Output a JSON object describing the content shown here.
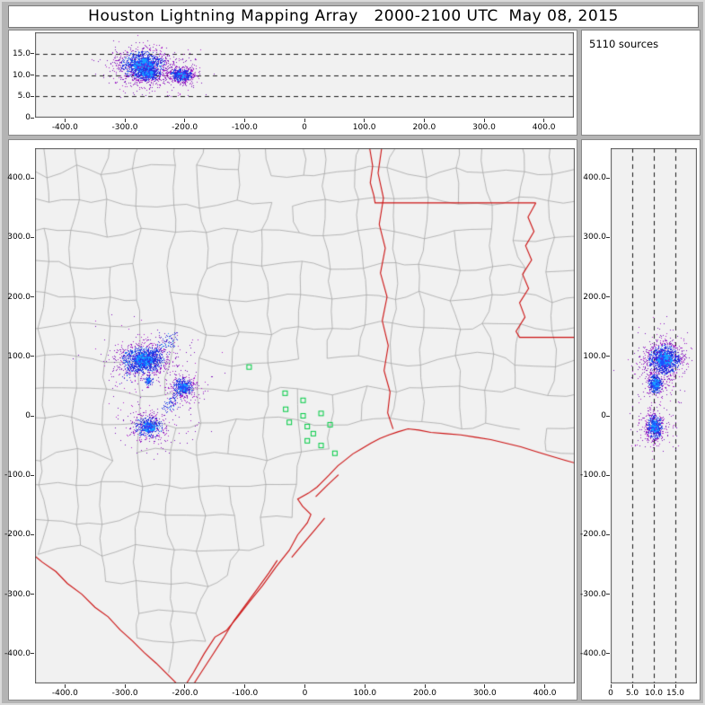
{
  "window": {
    "title": "Houston Lightning Mapping Array   2000-2100 UTC  May 08, 2015",
    "sources_label": "5110 sources"
  },
  "colors": {
    "frame_bg": "#b4b4b4",
    "panel_bg": "#f1f1f1",
    "county_line": "#a2a2a2",
    "state_line": "#cc1111",
    "sensor_green": "#00cc44",
    "dash_line": "#1a1a1a",
    "pt_core": [
      "#19a0ff",
      "#1c50ff"
    ],
    "pt_mid": "#2430e0",
    "pt_outer": [
      "#7d14bb",
      "#b020cc"
    ]
  },
  "chart_data": [
    {
      "id": "alt-ew",
      "type": "scatter",
      "xlim": [
        -450,
        450
      ],
      "ylim": [
        0,
        20
      ],
      "x_ticks": [
        -400,
        -300,
        -200,
        -100,
        0,
        100,
        200,
        300,
        400
      ],
      "x_tick_labels": [
        "-400.0",
        "-300.0",
        "-200.0",
        "-100.0",
        "0",
        "100.0",
        "200.0",
        "300.0",
        "400.0"
      ],
      "y_ticks": [
        0,
        5,
        10,
        15
      ],
      "y_tick_labels": [
        "0",
        "5.0",
        "10.0",
        "15.0"
      ],
      "dashed_y": [
        5,
        10,
        15
      ],
      "clusters": [
        {
          "kind": "gauss",
          "cx": -270,
          "cy": 12.4,
          "sx": 20,
          "sy": 1.8,
          "n": 1250
        },
        {
          "kind": "gauss",
          "cx": -262,
          "cy": 10.3,
          "sx": 12,
          "sy": 0.9,
          "n": 420
        },
        {
          "kind": "gauss",
          "cx": -268,
          "cy": 12.0,
          "sx": 36,
          "sy": 2.8,
          "n": 150,
          "force": "outer"
        },
        {
          "kind": "gauss",
          "cx": -206,
          "cy": 10.1,
          "sx": 10,
          "sy": 0.8,
          "n": 600
        },
        {
          "kind": "gauss",
          "cx": -206,
          "cy": 10.1,
          "sx": 16,
          "sy": 1.6,
          "n": 90,
          "force": "outer"
        },
        {
          "kind": "uniform",
          "x0": -322,
          "x1": -180,
          "y0": 4.8,
          "y1": 16.3,
          "n": 110,
          "force": "outer"
        }
      ]
    },
    {
      "id": "plan",
      "type": "scatter",
      "xlim": [
        -450,
        450
      ],
      "ylim": [
        -450,
        450
      ],
      "x_ticks": [
        -400,
        -300,
        -200,
        -100,
        0,
        100,
        200,
        300,
        400
      ],
      "x_tick_labels": [
        "-400.0",
        "-300.0",
        "-200.0",
        "-100.0",
        "0",
        "100.0",
        "200.0",
        "300.0",
        "400.0"
      ],
      "y_ticks": [
        -400,
        -300,
        -200,
        -100,
        0,
        100,
        200,
        300,
        400
      ],
      "y_tick_labels": [
        "-400.0",
        "-300.0",
        "-200.0",
        "-100.0",
        "0",
        "100.0",
        "200.0",
        "300.0",
        "400.0"
      ],
      "clusters": [
        {
          "kind": "gauss",
          "cx": -270,
          "cy": 95,
          "sx": 19,
          "sy": 12,
          "n": 1200
        },
        {
          "kind": "line",
          "x1": -296,
          "y1": 68,
          "x2": -220,
          "y2": 134,
          "jitter": 7,
          "n": 240
        },
        {
          "kind": "gauss",
          "cx": -270,
          "cy": 95,
          "sx": 42,
          "sy": 26,
          "n": 140,
          "force": "outer"
        },
        {
          "kind": "gauss",
          "cx": -262,
          "cy": 60,
          "sx": 5,
          "sy": 5,
          "n": 70
        },
        {
          "kind": "gauss",
          "cx": -204,
          "cy": 49,
          "sx": 9,
          "sy": 8,
          "n": 430
        },
        {
          "kind": "line",
          "x1": -212,
          "y1": 36,
          "x2": -233,
          "y2": 12,
          "jitter": 5,
          "n": 80
        },
        {
          "kind": "gauss",
          "cx": -204,
          "cy": 49,
          "sx": 20,
          "sy": 16,
          "n": 90,
          "force": "outer"
        },
        {
          "kind": "gauss",
          "cx": -261,
          "cy": -18,
          "sx": 13,
          "sy": 10,
          "n": 420
        },
        {
          "kind": "gauss",
          "cx": -261,
          "cy": -18,
          "sx": 30,
          "sy": 22,
          "n": 120,
          "force": "outer"
        },
        {
          "kind": "uniform",
          "x0": -320,
          "x1": -175,
          "y0": -45,
          "y1": 140,
          "n": 100,
          "force": "outer"
        }
      ],
      "sensors": [
        [
          -93,
          82
        ],
        [
          -33,
          38
        ],
        [
          -3,
          26
        ],
        [
          -32,
          11
        ],
        [
          -26,
          -11
        ],
        [
          -3,
          0
        ],
        [
          4,
          -18
        ],
        [
          27,
          4
        ],
        [
          42,
          -15
        ],
        [
          4,
          -42
        ],
        [
          27,
          -50
        ],
        [
          50,
          -63
        ],
        [
          14,
          -30
        ]
      ]
    },
    {
      "id": "alt-ns",
      "type": "scatter",
      "xlim": [
        0,
        20
      ],
      "ylim": [
        -450,
        450
      ],
      "x_ticks": [
        0,
        5,
        10,
        15
      ],
      "x_tick_labels": [
        "0",
        "5.0",
        "10.0",
        "15.0"
      ],
      "y_ticks": [
        -400,
        -300,
        -200,
        -100,
        0,
        100,
        200,
        300,
        400
      ],
      "y_tick_labels": [
        "-400.0",
        "-300.0",
        "-200.0",
        "-100.0",
        "0",
        "100.0",
        "200.0",
        "300.0",
        "400.0"
      ],
      "dashed_x": [
        5,
        10,
        15
      ],
      "clusters": [
        {
          "kind": "gauss",
          "cx": 12.4,
          "cy": 95,
          "sx": 2.0,
          "sy": 14,
          "n": 1200
        },
        {
          "kind": "gauss",
          "cx": 12.0,
          "cy": 95,
          "sx": 3.2,
          "sy": 28,
          "n": 150,
          "force": "outer"
        },
        {
          "kind": "gauss",
          "cx": 10.3,
          "cy": 55,
          "sx": 0.9,
          "sy": 9,
          "n": 420
        },
        {
          "kind": "gauss",
          "cx": 10.1,
          "cy": -18,
          "sx": 1.0,
          "sy": 11,
          "n": 500
        },
        {
          "kind": "gauss",
          "cx": 10.1,
          "cy": -18,
          "sx": 2.2,
          "sy": 20,
          "n": 110,
          "force": "outer"
        },
        {
          "kind": "uniform",
          "x0": 4.8,
          "x1": 16.3,
          "y0": -50,
          "y1": 140,
          "n": 110,
          "force": "outer"
        }
      ]
    }
  ],
  "map_features": {
    "counties": {
      "step": 53,
      "jitter": 22,
      "seed": 7
    },
    "coast_test": [
      [
        -205,
        -462
      ],
      [
        -168,
        -400
      ],
      [
        -131,
        -361
      ],
      [
        -92,
        -312
      ],
      [
        -48,
        -254
      ],
      [
        -12,
        -200
      ],
      [
        10,
        -165
      ],
      [
        27,
        -113
      ],
      [
        65,
        -76
      ],
      [
        110,
        -46
      ],
      [
        148,
        -30
      ],
      [
        190,
        -25
      ],
      [
        260,
        -32
      ],
      [
        320,
        -42
      ],
      [
        380,
        -58
      ],
      [
        460,
        -82
      ]
    ],
    "rio_grande": [
      [
        -462,
        -226
      ],
      [
        -438,
        -246
      ],
      [
        -415,
        -262
      ],
      [
        -396,
        -282
      ],
      [
        -372,
        -300
      ],
      [
        -350,
        -322
      ],
      [
        -328,
        -338
      ],
      [
        -308,
        -360
      ],
      [
        -288,
        -378
      ],
      [
        -268,
        -398
      ],
      [
        -248,
        -416
      ],
      [
        -230,
        -434
      ],
      [
        -216,
        -448
      ],
      [
        -205,
        -462
      ]
    ],
    "state_lines": {
      "gulf_coast": [
        [
          -205,
          -462
        ],
        [
          -186,
          -432
        ],
        [
          -168,
          -400
        ],
        [
          -150,
          -372
        ],
        [
          -131,
          -361
        ],
        [
          -112,
          -338
        ],
        [
          -92,
          -312
        ],
        [
          -71,
          -286
        ],
        [
          -48,
          -254
        ],
        [
          -26,
          -226
        ],
        [
          -12,
          -200
        ],
        [
          4,
          -180
        ],
        [
          10,
          -166
        ],
        [
          -4,
          -152
        ],
        [
          -12,
          -140
        ],
        [
          6,
          -130
        ],
        [
          20,
          -120
        ],
        [
          27,
          -113
        ],
        [
          40,
          -100
        ],
        [
          55,
          -84
        ],
        [
          65,
          -76
        ],
        [
          80,
          -64
        ],
        [
          95,
          -55
        ],
        [
          110,
          -46
        ],
        [
          125,
          -38
        ],
        [
          140,
          -32
        ],
        [
          155,
          -27
        ],
        [
          172,
          -22
        ],
        [
          190,
          -24
        ],
        [
          210,
          -28
        ],
        [
          235,
          -30
        ],
        [
          260,
          -32
        ],
        [
          285,
          -36
        ],
        [
          310,
          -40
        ],
        [
          335,
          -46
        ],
        [
          360,
          -52
        ],
        [
          385,
          -60
        ],
        [
          411,
          -68
        ],
        [
          435,
          -75
        ],
        [
          460,
          -82
        ]
      ],
      "rio_grande": [
        [
          -462,
          -226
        ],
        [
          -438,
          -246
        ],
        [
          -415,
          -262
        ],
        [
          -396,
          -282
        ],
        [
          -372,
          -300
        ],
        [
          -350,
          -322
        ],
        [
          -328,
          -338
        ],
        [
          -308,
          -360
        ],
        [
          -288,
          -378
        ],
        [
          -268,
          -398
        ],
        [
          -248,
          -416
        ],
        [
          -230,
          -434
        ],
        [
          -216,
          -448
        ],
        [
          -205,
          -462
        ]
      ],
      "padre_island": [
        [
          -190,
          -458
        ],
        [
          -172,
          -430
        ],
        [
          -154,
          -402
        ],
        [
          -136,
          -374
        ],
        [
          -118,
          -344
        ],
        [
          -99,
          -318
        ],
        [
          -80,
          -292
        ],
        [
          -60,
          -264
        ],
        [
          -46,
          -243
        ]
      ],
      "matagorda_island": [
        [
          -22,
          -238
        ],
        [
          -2,
          -214
        ],
        [
          18,
          -190
        ],
        [
          33,
          -172
        ]
      ],
      "galveston_island": [
        [
          18,
          -136
        ],
        [
          38,
          -116
        ],
        [
          56,
          -99
        ]
      ],
      "tx_la_border": [
        [
          128,
          450
        ],
        [
          122,
          408
        ],
        [
          131,
          366
        ],
        [
          124,
          322
        ],
        [
          134,
          282
        ],
        [
          126,
          240
        ],
        [
          137,
          200
        ],
        [
          129,
          160
        ],
        [
          139,
          118
        ],
        [
          132,
          76
        ],
        [
          142,
          40
        ],
        [
          138,
          5
        ],
        [
          147,
          -22
        ]
      ],
      "ar_la_border": [
        [
          108,
          450
        ],
        [
          113,
          420
        ],
        [
          109,
          392
        ],
        [
          115,
          370
        ],
        [
          117,
          358
        ],
        [
          385,
          358
        ]
      ],
      "ms_river_border": [
        [
          385,
          358
        ],
        [
          372,
          334
        ],
        [
          382,
          310
        ],
        [
          368,
          286
        ],
        [
          378,
          262
        ],
        [
          363,
          238
        ],
        [
          373,
          214
        ],
        [
          358,
          190
        ],
        [
          367,
          166
        ],
        [
          352,
          142
        ],
        [
          358,
          132
        ],
        [
          460,
          132
        ]
      ]
    }
  }
}
